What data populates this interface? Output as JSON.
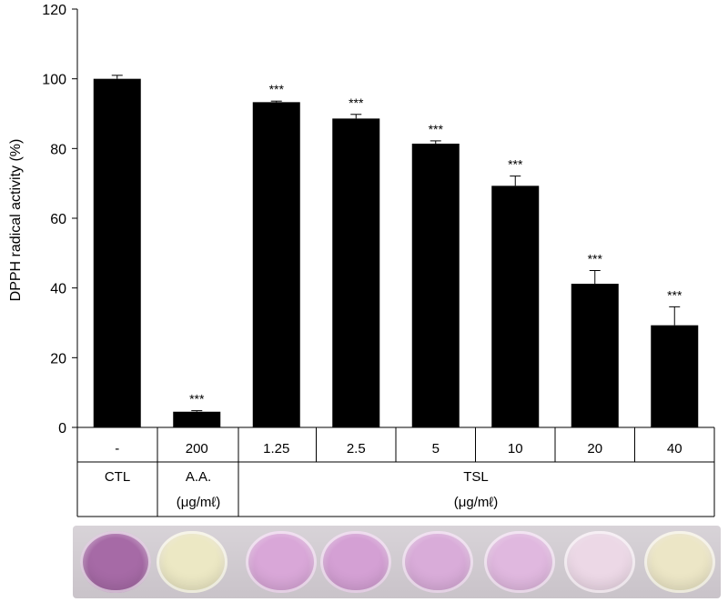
{
  "chart_data": {
    "type": "bar",
    "categories": [
      "-",
      "200",
      "1.25",
      "2.5",
      "5",
      "10",
      "20",
      "40"
    ],
    "values": [
      100,
      4.5,
      93.3,
      88.6,
      81.4,
      69.3,
      41.2,
      29.3
    ],
    "errors": [
      1.0,
      0.3,
      0.3,
      1.2,
      0.8,
      2.8,
      3.8,
      5.3
    ],
    "significance": [
      "",
      "***",
      "***",
      "***",
      "***",
      "***",
      "***",
      "***"
    ],
    "ylabel": "DPPH radical activity (%)",
    "ylim": [
      0,
      120
    ],
    "yticks": [
      "0",
      "20",
      "40",
      "60",
      "80",
      "100",
      "120"
    ],
    "group_labels": [
      {
        "name": "CTL",
        "unit": ""
      },
      {
        "name": "A.A.",
        "unit": "(μg/mℓ)"
      },
      {
        "name": "TSL",
        "unit": "(μg/mℓ)"
      }
    ],
    "bar_color": "#000000"
  },
  "plate": {
    "well_colors": [
      "#a66aa6",
      "#ece8c4",
      "#d9a7d8",
      "#d4a0d4",
      "#d9acd9",
      "#e0b8df",
      "#ecd8e6",
      "#ece6c6"
    ]
  }
}
